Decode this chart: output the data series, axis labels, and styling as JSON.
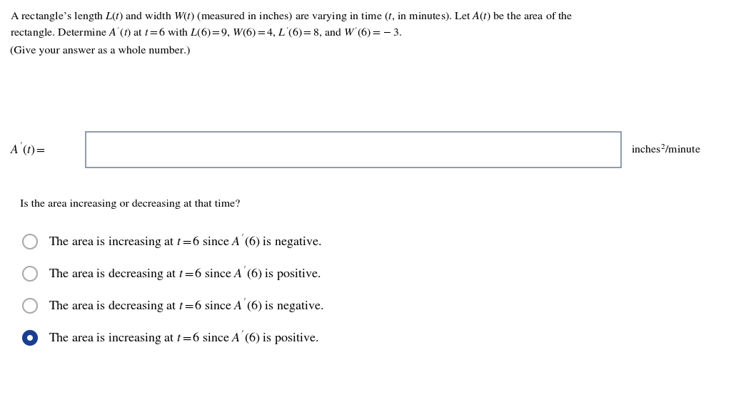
{
  "background_color": "#ffffff",
  "title_text_line1": "A rectangle’s length $L(t)$ and width $W(t)$ (measured in inches) are varying in time ($t$, in minutes). Let $A(t)$ be the area of the",
  "title_text_line2": "rectangle. Determine $A'(t)$ at $t = 6$ with $L(6) = 9$, $W(6) = 4$, $L'(6) = 8$, and $W'(6) = -3$.",
  "subtitle": "(Give your answer as a whole number.)",
  "input_label": "$A'(t) =$",
  "units_label": "inches$^2$/minute",
  "question": "Is the area increasing or decreasing at that time?",
  "options": [
    "The area is increasing at $t = 6$ since $A'(6)$ is negative.",
    "The area is decreasing at $t = 6$ since $A'(6)$ is positive.",
    "The area is decreasing at $t = 6$ since $A'(6)$ is negative.",
    "The area is increasing at $t = 6$ since $A'(6)$ is positive."
  ],
  "selected_option": 3,
  "box_color": "#7a8a99",
  "radio_unselected_color": "#aaaaaa",
  "radio_fill_color": "#1a3e8f",
  "text_color": "#000000",
  "font_size_main": 11.5,
  "font_size_options": 13
}
